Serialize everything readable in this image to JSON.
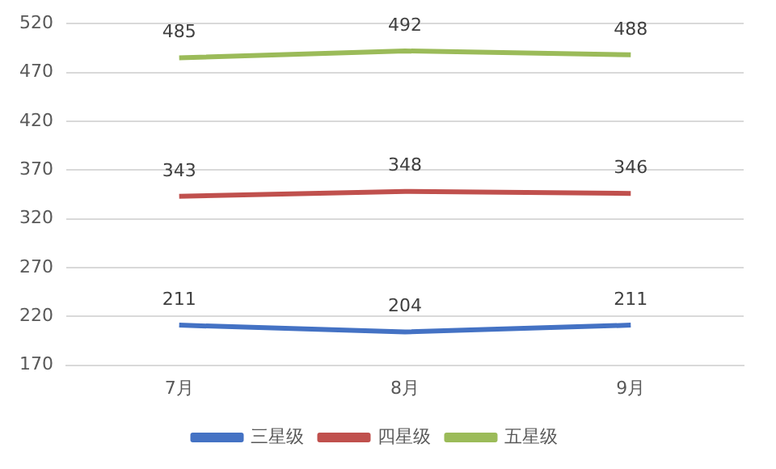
{
  "chart_data": {
    "type": "line",
    "categories": [
      "7月",
      "8月",
      "9月"
    ],
    "series": [
      {
        "name": "三星级",
        "color": "#4472c4",
        "values": [
          211,
          204,
          211
        ]
      },
      {
        "name": "四星级",
        "color": "#c0504d",
        "values": [
          343,
          348,
          346
        ]
      },
      {
        "name": "五星级",
        "color": "#9bbb59",
        "values": [
          485,
          492,
          488
        ]
      }
    ],
    "ylim": [
      170,
      520
    ],
    "yticks": [
      170,
      220,
      270,
      320,
      370,
      420,
      470,
      520
    ],
    "grid": "y",
    "legend": "bottom",
    "marker": "none",
    "line_style": "solid",
    "data_labels": true
  }
}
